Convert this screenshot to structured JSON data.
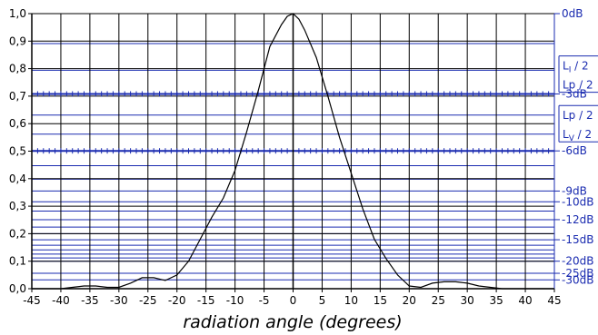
{
  "chart_data": {
    "type": "line",
    "title": "",
    "xlabel": "radiation angle (degrees)",
    "ylabel": "",
    "xlim": [
      -45,
      45
    ],
    "ylim": [
      0,
      1
    ],
    "grid": true,
    "x_ticks": [
      -45,
      -40,
      -35,
      -30,
      -25,
      -20,
      -15,
      -10,
      -5,
      0,
      5,
      10,
      15,
      20,
      25,
      30,
      35,
      40,
      45
    ],
    "x_tick_labels": [
      "-45",
      "-40",
      "-35",
      "-30",
      "-25",
      "-20",
      "-15",
      "-10",
      "-5",
      "0",
      "5",
      "10",
      "15",
      "20",
      "25",
      "30",
      "35",
      "40",
      "45"
    ],
    "y_ticks": [
      0,
      0.1,
      0.2,
      0.3,
      0.4,
      0.5,
      0.6,
      0.7,
      0.8,
      0.9,
      1.0
    ],
    "y_tick_labels": [
      "0,0",
      "0,1",
      "0,2",
      "0,3",
      "0,4",
      "0,5",
      "0,6",
      "0,7",
      "0,8",
      "0,9",
      "1,0"
    ],
    "reference_lines": [
      {
        "value": 1.0,
        "label": "0dB"
      },
      {
        "value": 0.891,
        "label": ""
      },
      {
        "value": 0.794,
        "label": ""
      },
      {
        "value": 0.708,
        "label": "-3dB",
        "marked": true
      },
      {
        "value": 0.631,
        "label": ""
      },
      {
        "value": 0.562,
        "label": ""
      },
      {
        "value": 0.501,
        "label": "-6dB",
        "marked": true
      },
      {
        "value": 0.447,
        "label": ""
      },
      {
        "value": 0.398,
        "label": ""
      },
      {
        "value": 0.355,
        "label": "-9dB"
      },
      {
        "value": 0.316,
        "label": "-10dB"
      },
      {
        "value": 0.282,
        "label": ""
      },
      {
        "value": 0.251,
        "label": "-12dB"
      },
      {
        "value": 0.224,
        "label": ""
      },
      {
        "value": 0.2,
        "label": ""
      },
      {
        "value": 0.178,
        "label": "-15dB"
      },
      {
        "value": 0.158,
        "label": ""
      },
      {
        "value": 0.141,
        "label": ""
      },
      {
        "value": 0.126,
        "label": ""
      },
      {
        "value": 0.112,
        "label": ""
      },
      {
        "value": 0.1,
        "label": "-20dB"
      },
      {
        "value": 0.056,
        "label": "-25dB"
      },
      {
        "value": 0.032,
        "label": "-30dB"
      }
    ],
    "bracket_labels": [
      {
        "value": 0.78,
        "lines": [
          "L",
          "I",
          "/ 2",
          "Lp / 2"
        ]
      },
      {
        "value": 0.6,
        "lines": [
          "Lp / 2",
          "L",
          "V",
          "/ 2"
        ]
      }
    ],
    "series": [
      {
        "x": [
          -45,
          -42,
          -40,
          -38,
          -36,
          -34,
          -32,
          -30,
          -28,
          -26,
          -24,
          -22,
          -20,
          -18,
          -16,
          -14,
          -12,
          -10,
          -8,
          -6,
          -4,
          -2,
          -1,
          0,
          1,
          2,
          4,
          6,
          8,
          10,
          12,
          14,
          16,
          18,
          20,
          22,
          24,
          26,
          28,
          30,
          32,
          34,
          36,
          38,
          40,
          42,
          45
        ],
        "values": [
          0.0,
          0.0,
          0.0,
          0.005,
          0.01,
          0.01,
          0.005,
          0.005,
          0.02,
          0.04,
          0.04,
          0.03,
          0.05,
          0.1,
          0.18,
          0.26,
          0.33,
          0.43,
          0.57,
          0.72,
          0.88,
          0.96,
          0.99,
          1.0,
          0.98,
          0.94,
          0.84,
          0.7,
          0.55,
          0.42,
          0.29,
          0.18,
          0.11,
          0.05,
          0.01,
          0.005,
          0.02,
          0.025,
          0.025,
          0.02,
          0.01,
          0.005,
          0.0,
          0.0,
          0.0,
          0.0,
          0.0
        ]
      }
    ]
  }
}
